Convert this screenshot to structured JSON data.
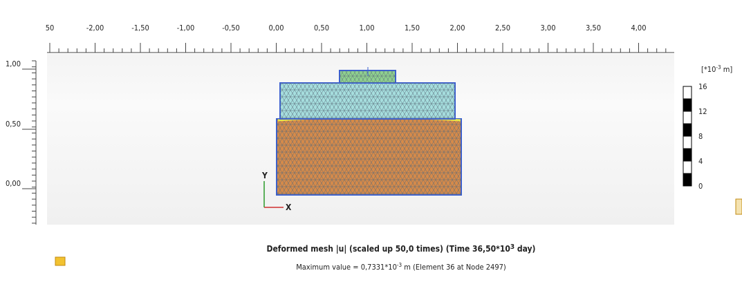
{
  "ruler": {
    "x_labels": [
      "50",
      "-2,00",
      "-1,50",
      "-1,00",
      "-0,50",
      "0,00",
      "0,50",
      "1,00",
      "1,50",
      "2,00",
      "2,50",
      "3,00",
      "3,50",
      "4,00"
    ],
    "y_labels": [
      "1,00",
      "0,50",
      "0,00"
    ]
  },
  "axes": {
    "y": "Y",
    "x": "X"
  },
  "legend": {
    "unit": {
      "base": "[*10",
      "exp": "-3",
      "rest": " m]"
    },
    "labels": [
      "16",
      "12",
      "8",
      "4",
      "0"
    ]
  },
  "caption": {
    "base": "Deformed mesh |u| (scaled up 50,0 times) (Time 36,50*10",
    "exp": "3",
    "rest": " day)"
  },
  "maximum": {
    "base": "Maximum value = 0,7331*10",
    "exp": "-3",
    "rest": " m (Element 36 at Node 2497)"
  }
}
